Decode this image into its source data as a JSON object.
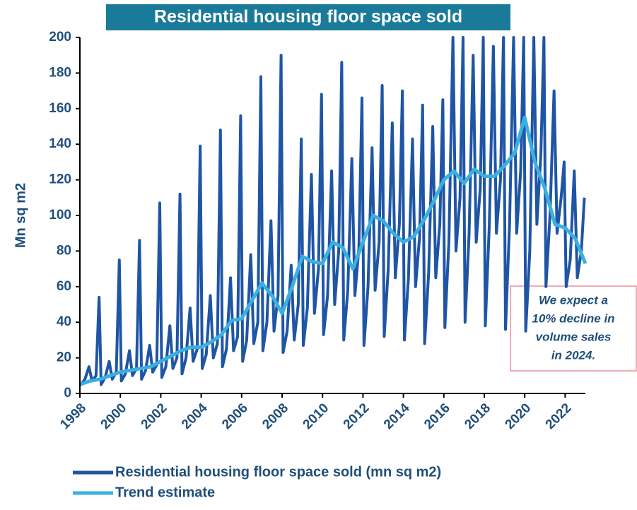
{
  "chart_data": {
    "type": "line",
    "title": "Residential housing floor space sold",
    "ylabel": "Mn sq m2",
    "annotation": [
      "We expect a",
      "10% decline in",
      "volume sales",
      "in 2024."
    ],
    "xlim": [
      1998,
      2023
    ],
    "xticks": [
      1998,
      2000,
      2002,
      2004,
      2006,
      2008,
      2010,
      2012,
      2014,
      2016,
      2018,
      2020,
      2022
    ],
    "ylim": [
      0,
      200
    ],
    "yticks": [
      0,
      20,
      40,
      60,
      80,
      100,
      120,
      140,
      160,
      180,
      200
    ],
    "series": [
      {
        "name": "Residential housing floor space sold (mn sq m2)",
        "color": "#1f55a5",
        "x": [
          1998.05,
          1998.25,
          1998.45,
          1998.6,
          1998.8,
          1998.95,
          1999.05,
          1999.25,
          1999.45,
          1999.6,
          1999.8,
          1999.95,
          2000.05,
          2000.25,
          2000.45,
          2000.6,
          2000.8,
          2000.95,
          2001.05,
          2001.25,
          2001.45,
          2001.6,
          2001.8,
          2001.95,
          2002.05,
          2002.25,
          2002.45,
          2002.6,
          2002.8,
          2002.95,
          2003.05,
          2003.25,
          2003.45,
          2003.6,
          2003.8,
          2003.95,
          2004.05,
          2004.25,
          2004.45,
          2004.6,
          2004.8,
          2004.95,
          2005.05,
          2005.25,
          2005.45,
          2005.6,
          2005.8,
          2005.95,
          2006.05,
          2006.25,
          2006.45,
          2006.6,
          2006.8,
          2006.95,
          2007.05,
          2007.25,
          2007.45,
          2007.6,
          2007.8,
          2007.95,
          2008.05,
          2008.25,
          2008.45,
          2008.6,
          2008.8,
          2008.95,
          2009.05,
          2009.25,
          2009.45,
          2009.6,
          2009.8,
          2009.95,
          2010.05,
          2010.25,
          2010.45,
          2010.6,
          2010.8,
          2010.95,
          2011.05,
          2011.25,
          2011.45,
          2011.6,
          2011.8,
          2011.95,
          2012.05,
          2012.25,
          2012.45,
          2012.6,
          2012.8,
          2012.95,
          2013.05,
          2013.25,
          2013.45,
          2013.6,
          2013.8,
          2013.95,
          2014.05,
          2014.25,
          2014.45,
          2014.6,
          2014.8,
          2014.95,
          2015.05,
          2015.25,
          2015.45,
          2015.6,
          2015.8,
          2015.95,
          2016.05,
          2016.25,
          2016.45,
          2016.6,
          2016.8,
          2016.95,
          2017.05,
          2017.25,
          2017.45,
          2017.6,
          2017.8,
          2017.95,
          2018.05,
          2018.25,
          2018.45,
          2018.6,
          2018.8,
          2018.95,
          2019.05,
          2019.25,
          2019.45,
          2019.6,
          2019.8,
          2019.95,
          2020.05,
          2020.25,
          2020.45,
          2020.6,
          2020.8,
          2020.95,
          2021.05,
          2021.25,
          2021.45,
          2021.6,
          2021.8,
          2021.95,
          2022.05,
          2022.25,
          2022.45,
          2022.6,
          2022.8,
          2022.95
        ],
        "values": [
          5,
          8,
          15,
          7,
          10,
          54,
          5,
          9,
          18,
          8,
          12,
          75,
          7,
          11,
          24,
          10,
          14,
          86,
          8,
          13,
          27,
          12,
          16,
          107,
          9,
          15,
          38,
          14,
          20,
          112,
          11,
          20,
          48,
          18,
          25,
          139,
          14,
          22,
          55,
          20,
          28,
          148,
          15,
          25,
          65,
          24,
          32,
          156,
          18,
          30,
          78,
          28,
          40,
          178,
          24,
          40,
          97,
          35,
          55,
          190,
          23,
          35,
          72,
          30,
          50,
          143,
          27,
          48,
          123,
          45,
          70,
          168,
          33,
          55,
          125,
          50,
          80,
          186,
          30,
          58,
          132,
          55,
          82,
          166,
          27,
          60,
          138,
          58,
          85,
          173,
          32,
          70,
          152,
          65,
          95,
          170,
          30,
          65,
          143,
          60,
          88,
          162,
          28,
          68,
          150,
          65,
          95,
          165,
          37,
          85,
          200,
          80,
          110,
          200,
          40,
          90,
          190,
          85,
          115,
          200,
          38,
          95,
          195,
          90,
          120,
          200,
          36,
          95,
          200,
          90,
          125,
          200,
          35,
          80,
          200,
          95,
          135,
          200,
          60,
          100,
          170,
          90,
          110,
          130,
          60,
          75,
          125,
          65,
          80,
          110
        ]
      },
      {
        "name": "Trend estimate",
        "color": "#3ab0e2",
        "x": [
          1998,
          1998.5,
          1999,
          1999.5,
          2000,
          2000.5,
          2001,
          2001.5,
          2002,
          2002.5,
          2003,
          2003.5,
          2004,
          2004.5,
          2005,
          2005.5,
          2006,
          2006.5,
          2007,
          2007.5,
          2008,
          2008.5,
          2009,
          2009.5,
          2010,
          2010.5,
          2011,
          2011.5,
          2012,
          2012.5,
          2013,
          2013.5,
          2014,
          2014.5,
          2015,
          2015.5,
          2016,
          2016.5,
          2017,
          2017.5,
          2018,
          2018.5,
          2019,
          2019.5,
          2020,
          2020.5,
          2021,
          2021.5,
          2022,
          2022.5,
          2023
        ],
        "values": [
          5,
          7,
          8,
          10,
          12,
          13,
          14,
          15,
          18,
          21,
          24,
          26,
          26,
          29,
          33,
          41,
          42,
          52,
          62,
          55,
          45,
          60,
          77,
          74,
          73,
          85,
          82,
          70,
          85,
          100,
          97,
          90,
          85,
          88,
          97,
          108,
          120,
          125,
          118,
          126,
          122,
          122,
          128,
          135,
          155,
          130,
          115,
          95,
          93,
          87,
          73
        ]
      }
    ]
  }
}
